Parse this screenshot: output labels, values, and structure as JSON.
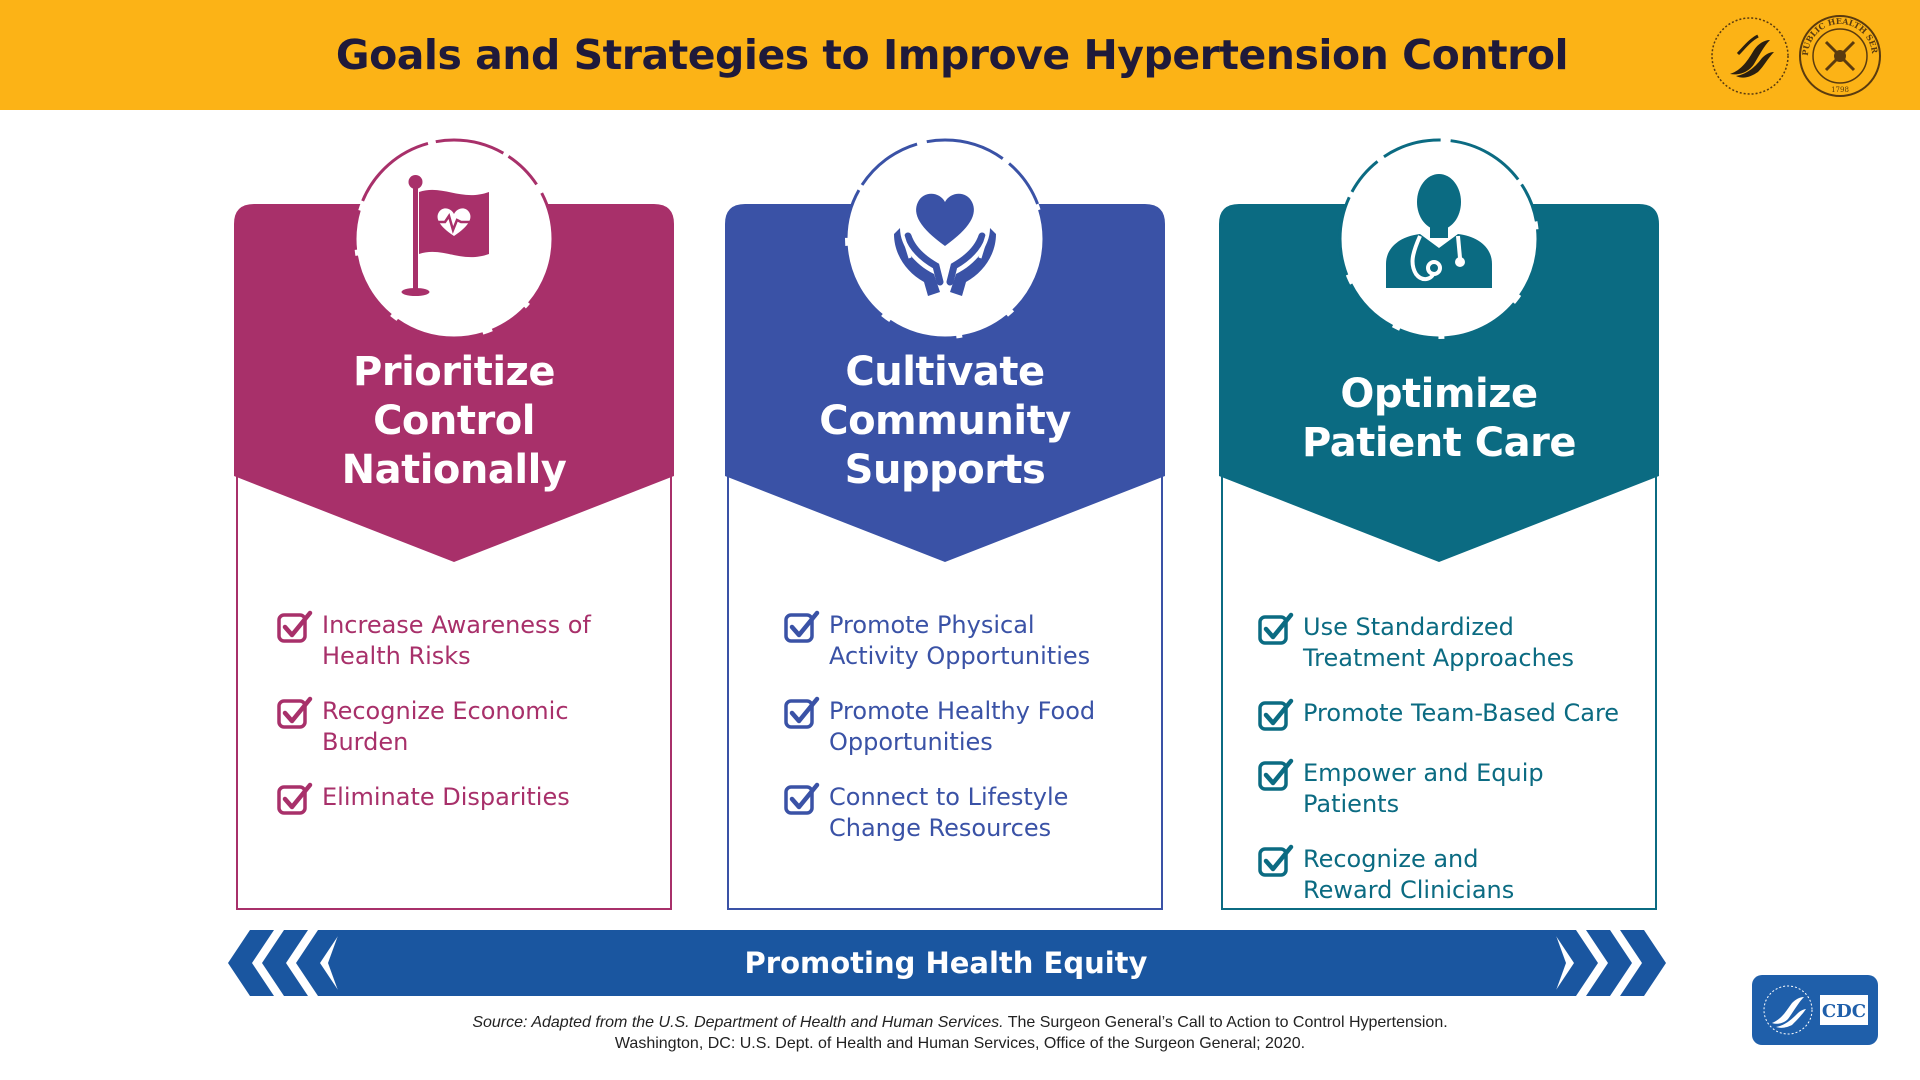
{
  "header": {
    "title": "Goals and Strategies to Improve Hypertension Control",
    "color": "#FCB316"
  },
  "cards": [
    {
      "title_lines": [
        "Prioritize",
        "Control",
        "Nationally"
      ],
      "color": "#A8306A",
      "icon": "flag-heartbeat-icon",
      "items": [
        "Increase Awareness of\nHealth Risks",
        "Recognize Economic Burden",
        "Eliminate Disparities"
      ]
    },
    {
      "title_lines": [
        "Cultivate",
        "Community",
        "Supports"
      ],
      "color": "#3A52A6",
      "icon": "hands-heart-icon",
      "items": [
        "Promote Physical\nActivity Opportunities",
        "Promote Healthy Food\nOpportunities",
        "Connect to Lifestyle\nChange Resources"
      ]
    },
    {
      "title_lines": [
        "Optimize",
        "Patient Care"
      ],
      "color": "#0B6B82",
      "icon": "doctor-stethoscope-icon",
      "items": [
        "Use Standardized\nTreatment Approaches",
        "Promote Team-Based Care",
        "Empower and Equip Patients",
        "Recognize and\nReward Clinicians"
      ]
    }
  ],
  "banner": {
    "label": "Promoting Health Equity",
    "color": "#1A56A0"
  },
  "source": {
    "line1_italic": "Source: Adapted from the U.S. Department of Health and Human Services.",
    "line1_rest": " The Surgeon General’s Call to Action to Control Hypertension.",
    "line2": "Washington, DC: U.S. Dept. of Health and Human Services, Office of the Surgeon General; 2020."
  },
  "logos": {
    "hhs": "HHS seal",
    "phs": "U.S. Public Health Service seal",
    "phs_text": "U.S. PUBLIC HEALTH SERVICE",
    "phs_year": "1798",
    "cdc": "CDC"
  }
}
